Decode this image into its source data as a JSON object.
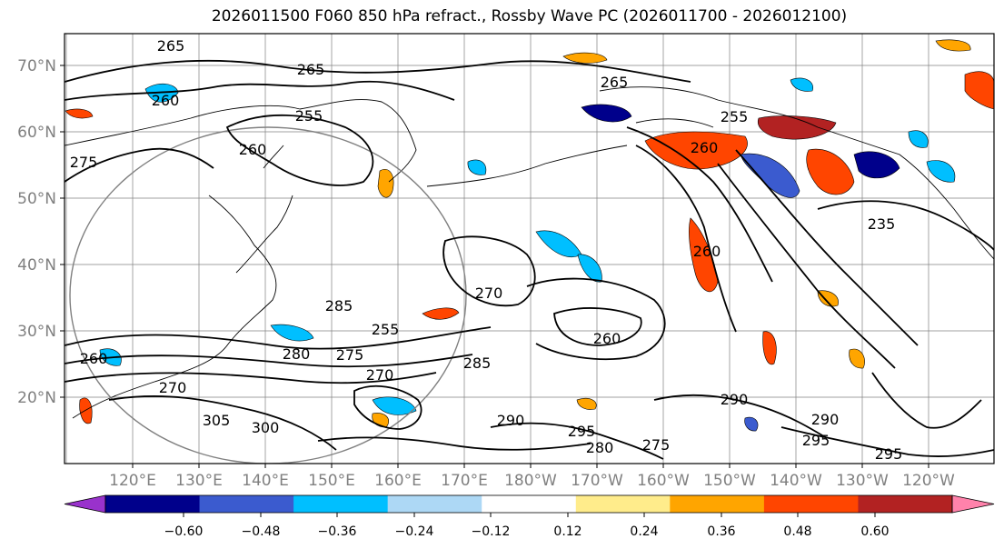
{
  "title": "2026011500 F060 850 hPa refract., Rossby Wave PC (2026011700 - 2026012100)",
  "map": {
    "lat_ticks": [
      "20°N",
      "30°N",
      "40°N",
      "50°N",
      "60°N",
      "70°N"
    ],
    "lon_ticks": [
      "120°E",
      "130°E",
      "140°E",
      "150°E",
      "160°E",
      "170°E",
      "180°W",
      "170°W",
      "160°W",
      "150°W",
      "140°W",
      "130°W",
      "120°W"
    ],
    "contour_labels": [
      "265",
      "265",
      "265",
      "260",
      "255",
      "260",
      "275",
      "255",
      "260",
      "235",
      "260",
      "270",
      "285",
      "255",
      "280",
      "275",
      "270",
      "285",
      "260",
      "290",
      "290",
      "295",
      "295",
      "290",
      "295",
      "280",
      "275",
      "300",
      "305",
      "270",
      "260"
    ]
  },
  "colorbar": {
    "colors": [
      "#9932cc",
      "#00008b",
      "#3b5bcf",
      "#00bfff",
      "#add8f5",
      "#ffffff",
      "#ffec8b",
      "#ffa500",
      "#ff4500",
      "#b22222",
      "#ff82ab"
    ],
    "tick_labels": [
      "−0.60",
      "−0.48",
      "−0.36",
      "−0.24",
      "−0.12",
      "0.12",
      "0.24",
      "0.36",
      "0.48",
      "0.60"
    ]
  }
}
